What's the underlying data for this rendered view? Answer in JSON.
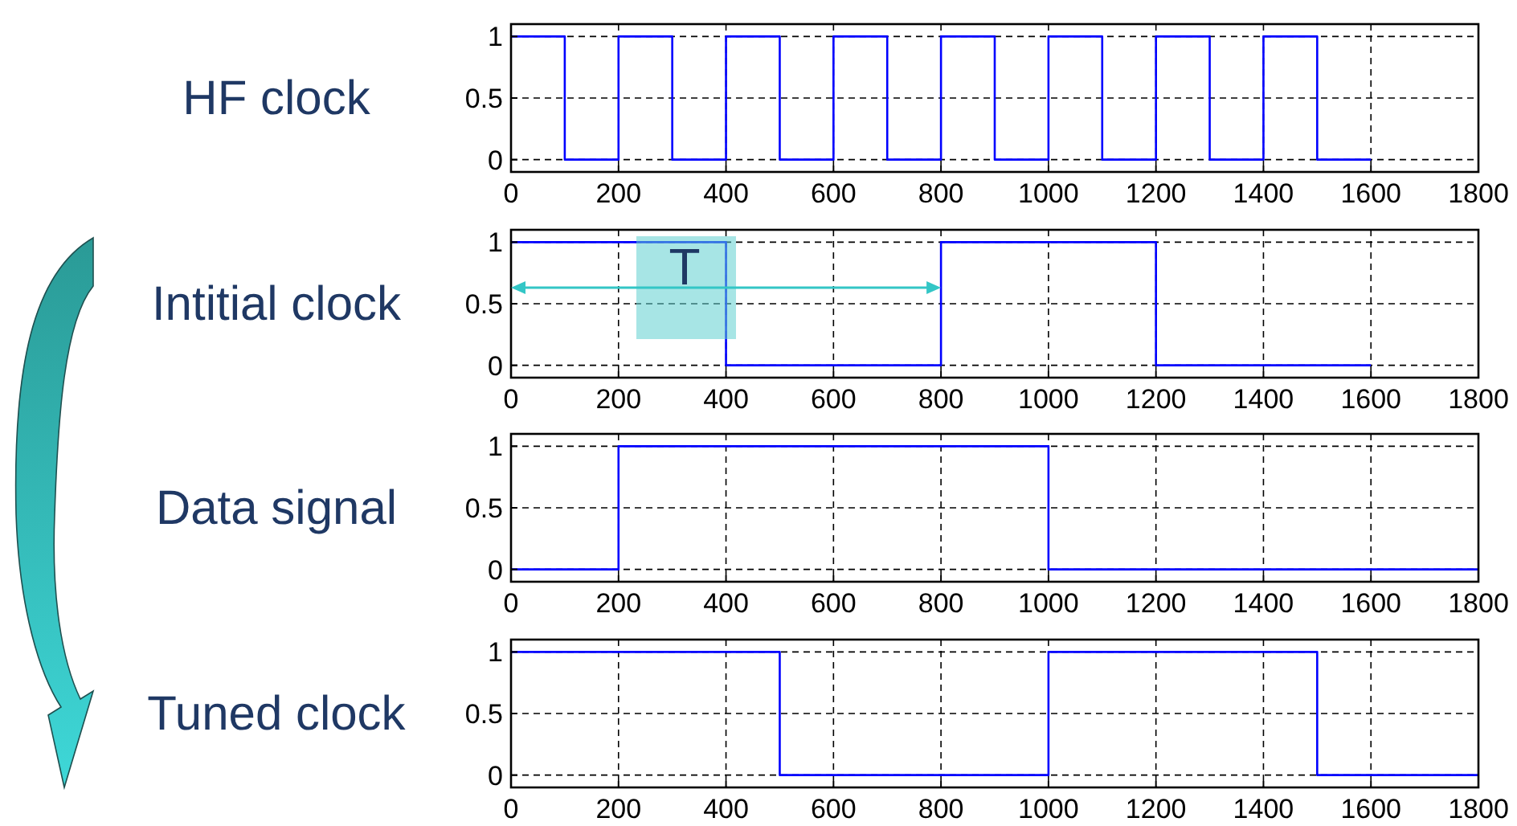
{
  "chart_data": [
    {
      "type": "step",
      "title": "HF clock",
      "x": [
        0,
        100,
        200,
        300,
        400,
        500,
        600,
        700,
        800,
        900,
        1000,
        1100,
        1200,
        1300,
        1400,
        1500,
        1600
      ],
      "series": [
        {
          "color": "#0000ff",
          "values": [
            1,
            0,
            1,
            0,
            1,
            0,
            1,
            0,
            1,
            0,
            1,
            0,
            1,
            0,
            1,
            0,
            0
          ]
        }
      ],
      "xlim": [
        0,
        1800
      ],
      "xticks": [
        0,
        200,
        400,
        600,
        800,
        1000,
        1200,
        1400,
        1600,
        1800
      ],
      "ylim": [
        -0.1,
        1.1
      ],
      "yticks": [
        0,
        0.5,
        1
      ],
      "grid": true,
      "line_style": "solid"
    },
    {
      "type": "step",
      "title": "Intitial clock",
      "x": [
        0,
        400,
        800,
        1200,
        1600
      ],
      "series": [
        {
          "color": "#0000ff",
          "values": [
            1,
            0,
            1,
            0,
            0
          ]
        }
      ],
      "xlim": [
        0,
        1800
      ],
      "xticks": [
        0,
        200,
        400,
        600,
        800,
        1000,
        1200,
        1400,
        1600,
        1800
      ],
      "ylim": [
        -0.1,
        1.1
      ],
      "yticks": [
        0,
        0.5,
        1
      ],
      "grid": true,
      "line_style": "solid",
      "annotations": [
        "T"
      ]
    },
    {
      "type": "step",
      "title": "Data signal",
      "x": [
        0,
        200,
        1000,
        1800
      ],
      "series": [
        {
          "color": "#0000ff",
          "values": [
            0,
            1,
            0,
            0
          ]
        }
      ],
      "xlim": [
        0,
        1800
      ],
      "xticks": [
        0,
        200,
        400,
        600,
        800,
        1000,
        1200,
        1400,
        1600,
        1800
      ],
      "ylim": [
        -0.1,
        1.1
      ],
      "yticks": [
        0,
        0.5,
        1
      ],
      "grid": true,
      "line_style": "solid"
    },
    {
      "type": "step",
      "title": "Tuned clock",
      "x": [
        0,
        500,
        1000,
        1500,
        1800
      ],
      "series": [
        {
          "color": "#0000ff",
          "values": [
            1,
            0,
            1,
            0,
            0
          ]
        }
      ],
      "xlim": [
        0,
        1800
      ],
      "xticks": [
        0,
        200,
        400,
        600,
        800,
        1000,
        1200,
        1400,
        1600,
        1800
      ],
      "ylim": [
        -0.1,
        1.1
      ],
      "yticks": [
        0,
        0.5,
        1
      ],
      "grid": true,
      "line_style": "solid"
    }
  ]
}
